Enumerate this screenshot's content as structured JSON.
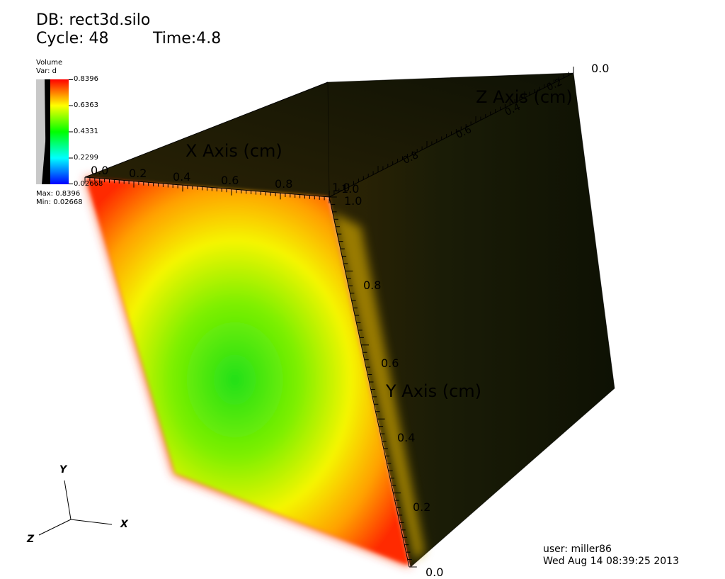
{
  "header": {
    "db_label": "DB: rect3d.silo",
    "cycle_label": "Cycle: 48",
    "time_label": "Time:4.8"
  },
  "legend": {
    "title": "Volume",
    "var": "Var: d",
    "ticks": [
      "0.8396",
      "0.6363",
      "0.4331",
      "0.2299",
      "0.02668"
    ],
    "max_label": "Max: 0.8396",
    "min_label": "Min: 0.02668",
    "colors": [
      "#ff0000",
      "#ffff00",
      "#00ff00",
      "#00ffff",
      "#0000ff"
    ]
  },
  "axes": {
    "x_title": "X Axis (cm)",
    "y_title": "Y Axis (cm)",
    "z_title": "Z Axis (cm)",
    "x_ticks": [
      "0.0",
      "0.2",
      "0.4",
      "0.6",
      "0.8",
      "1.0"
    ],
    "y_ticks": [
      "1.0",
      "0.8",
      "0.6",
      "0.4",
      "0.2",
      "0.0"
    ],
    "z_ticks": [
      "0.0",
      "0.2",
      "0.4",
      "0.6",
      "0.8",
      "1.0"
    ]
  },
  "triad": {
    "x": "X",
    "y": "Y",
    "z": "Z"
  },
  "footer": {
    "user": "user: miller86",
    "timestamp": "Wed Aug 14 08:39:25 2013"
  }
}
